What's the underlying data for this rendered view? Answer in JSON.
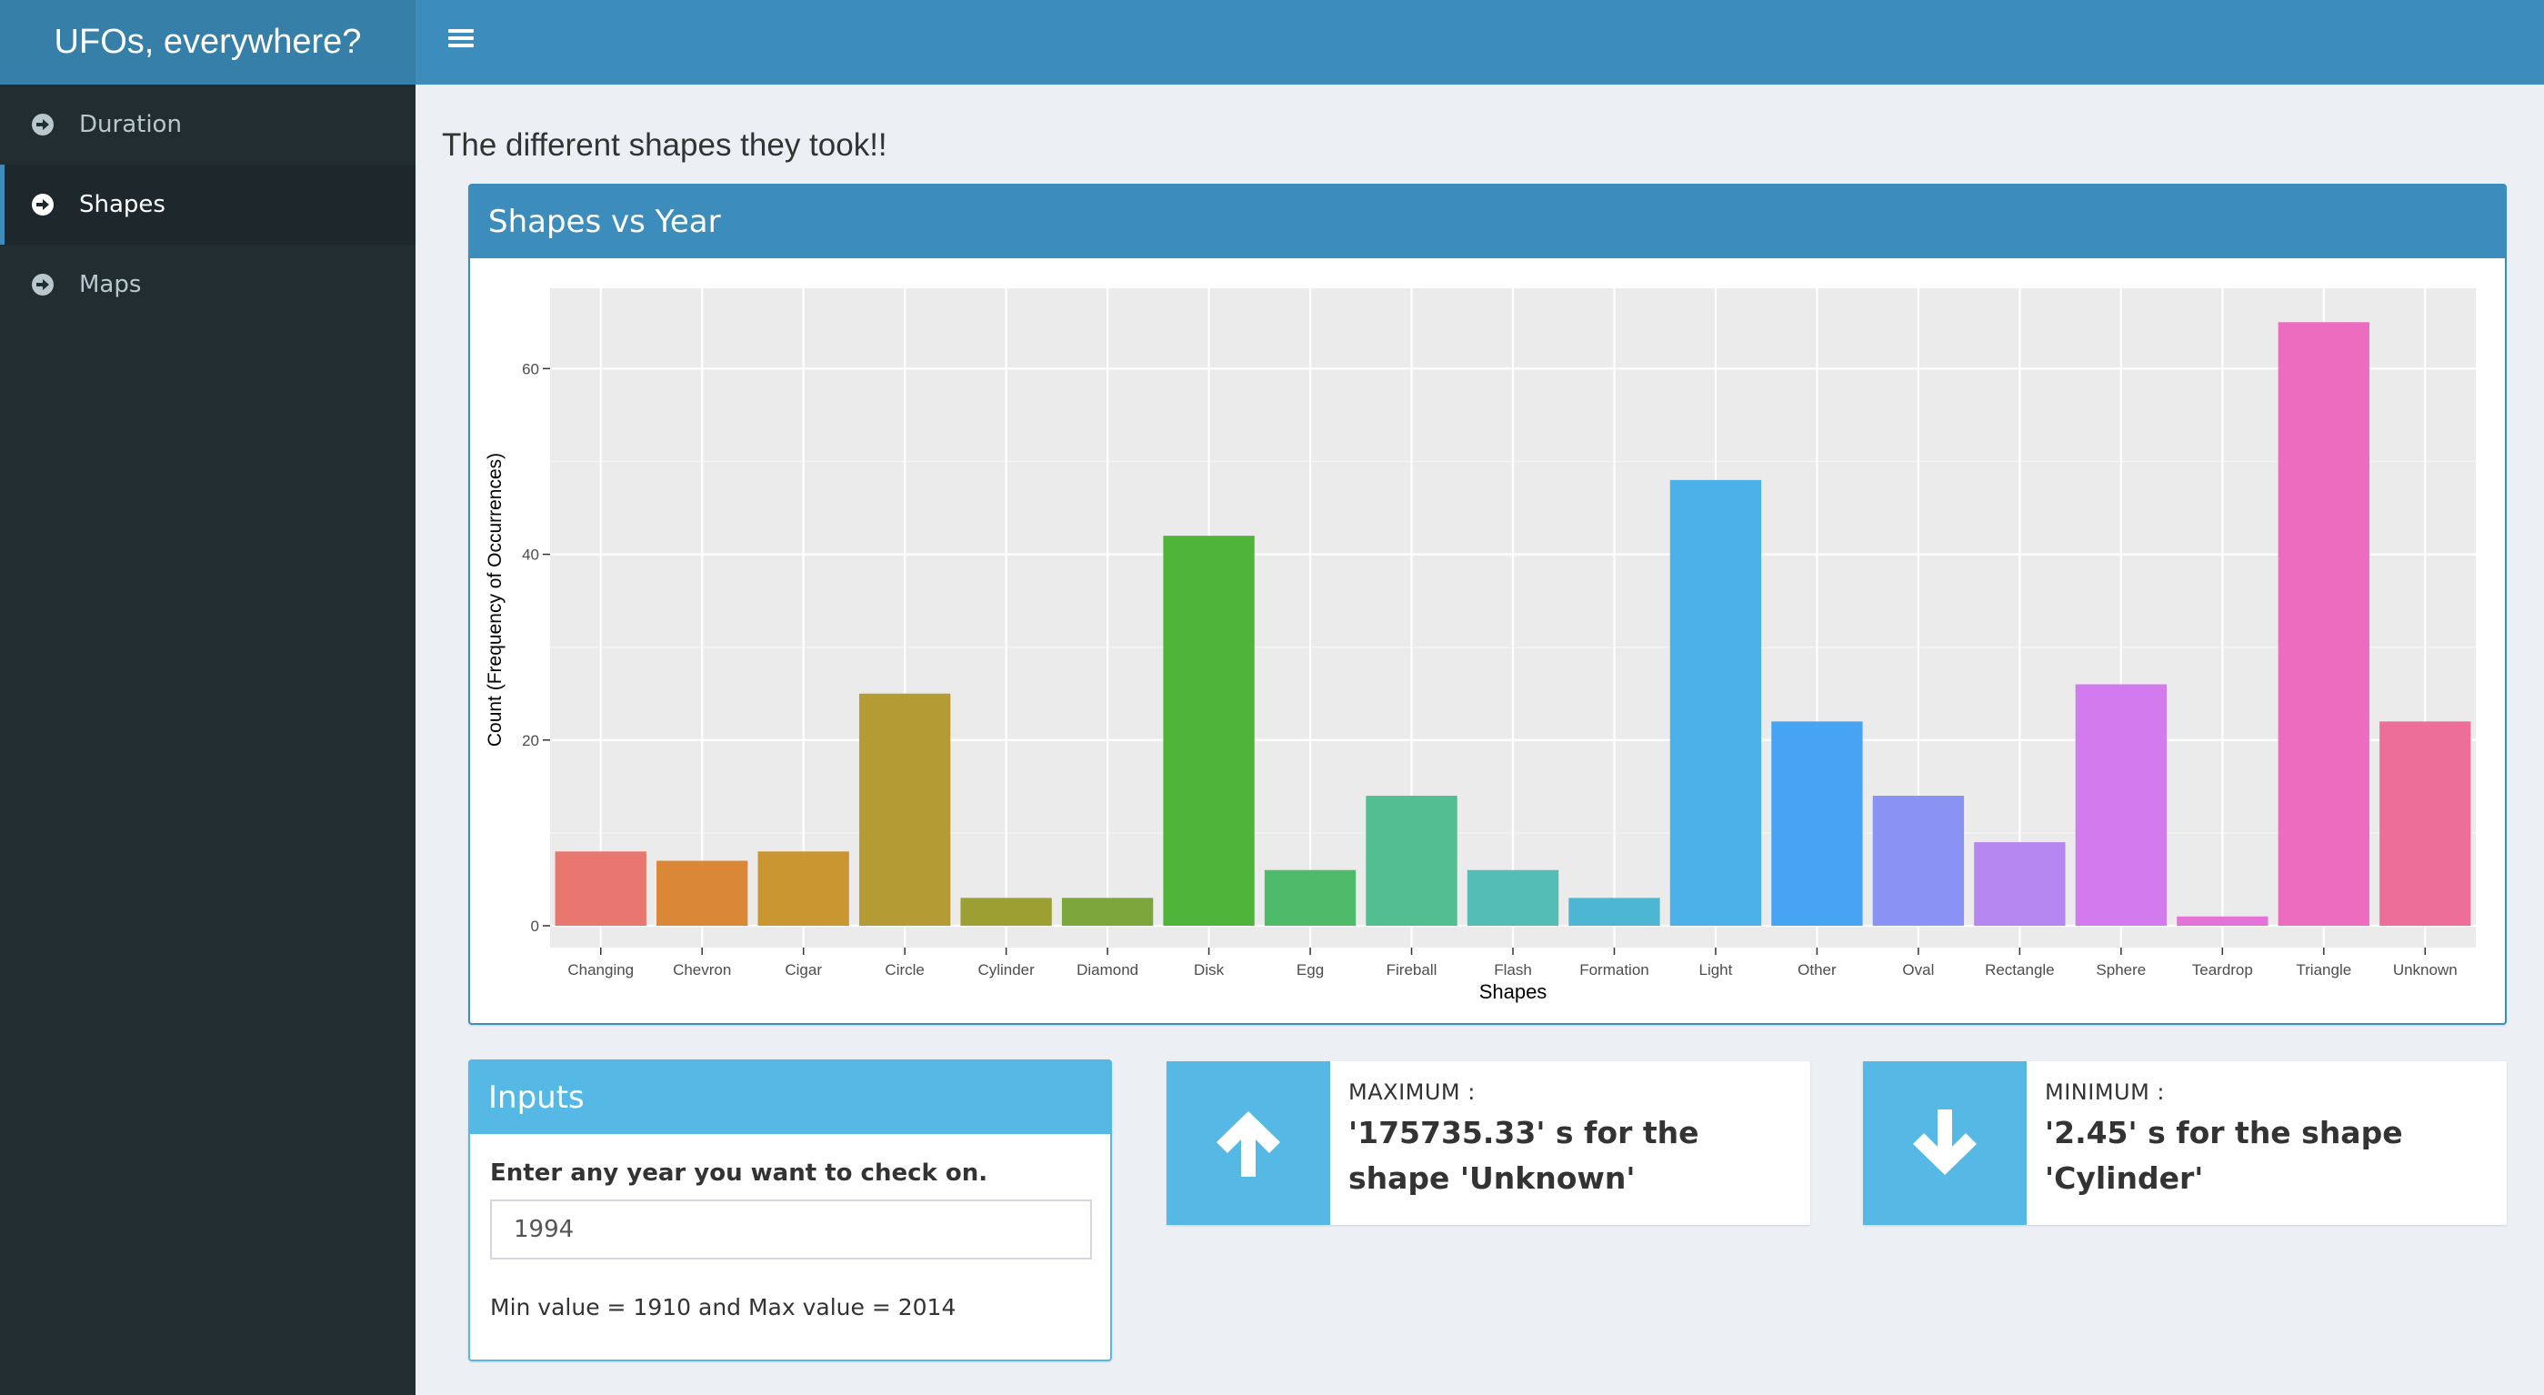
{
  "app": {
    "title": "UFOs, everywhere?"
  },
  "sidebar": {
    "items": [
      {
        "label": "Duration",
        "icon": "arrow-circle-right-icon",
        "active": false
      },
      {
        "label": "Shapes",
        "icon": "arrow-circle-right-icon",
        "active": true
      },
      {
        "label": "Maps",
        "icon": "arrow-circle-right-icon",
        "active": false
      }
    ]
  },
  "main": {
    "title": "The different shapes they took!!",
    "chart_box": {
      "title": "Shapes vs Year"
    },
    "inputs_box": {
      "title": "Inputs",
      "field_label": "Enter any year you want to check on.",
      "year_value": "1994",
      "note": "Min value = 1910 and Max value = 2014"
    },
    "max_box": {
      "label": "MAXIMUM :",
      "value": "'175735.33' s for the shape 'Unknown'",
      "icon": "arrow-up-icon"
    },
    "min_box": {
      "label": "MINIMUM :",
      "value": "'2.45' s for the shape 'Cylinder'",
      "icon": "arrow-down-icon"
    }
  },
  "colors": {
    "header": "#3c8dbc",
    "logo": "#367fa9",
    "sidebar": "#222d32",
    "info_accent": "#56b9e5"
  },
  "chart_data": {
    "type": "bar",
    "xlabel": "Shapes",
    "ylabel": "Count (Frequency of Occurrences)",
    "ylim": [
      0,
      71
    ],
    "yticks": [
      0,
      20,
      40,
      60
    ],
    "grid": true,
    "categories": [
      "Changing",
      "Chevron",
      "Cigar",
      "Circle",
      "Cylinder",
      "Diamond",
      "Disk",
      "Egg",
      "Fireball",
      "Flash",
      "Formation",
      "Light",
      "Other",
      "Oval",
      "Rectangle",
      "Sphere",
      "Teardrop",
      "Triangle",
      "Unknown"
    ],
    "values": [
      8,
      7,
      8,
      25,
      3,
      3,
      42,
      6,
      14,
      6,
      3,
      48,
      22,
      14,
      9,
      26,
      1,
      65,
      22
    ],
    "bar_colors": [
      "#E8786F",
      "#DA8837",
      "#C99632",
      "#B59B33",
      "#9C9F32",
      "#7BA63B",
      "#4FB43A",
      "#4DBB6A",
      "#53BE92",
      "#54BDB6",
      "#4DB7D3",
      "#4DB1E9",
      "#47A3F3",
      "#8993F3",
      "#B686F1",
      "#D27AEE",
      "#E472D8",
      "#EC6DC0",
      "#ED6F99"
    ]
  }
}
